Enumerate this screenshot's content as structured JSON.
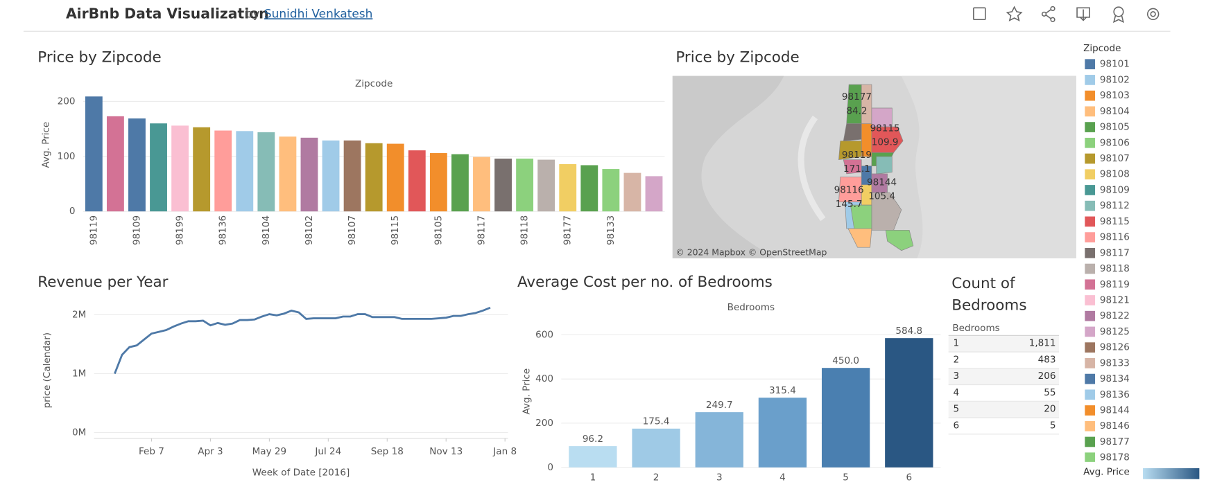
{
  "header": {
    "title": "AirBnb Data Visualization",
    "by": "by",
    "author": "Sunidhi Venkatesh"
  },
  "chart_data": [
    {
      "type": "bar",
      "title": "Price by Zipcode",
      "x_title": "Zipcode",
      "y_label": "Avg. Price",
      "categories": [
        "98119",
        null,
        "98109",
        null,
        "98199",
        null,
        "98136",
        null,
        "98104",
        null,
        "98102",
        null,
        "98107",
        null,
        "98115",
        null,
        "98105",
        null,
        "98117",
        null,
        "98118",
        null,
        "98177",
        null,
        "98133",
        null,
        null
      ],
      "values": [
        209,
        173,
        169,
        160,
        156,
        153,
        147,
        146,
        144,
        136,
        134,
        129,
        129,
        124,
        123,
        111,
        106,
        104,
        99,
        96,
        96,
        94,
        86,
        84,
        77,
        70,
        64
      ],
      "colors": [
        "#4e79a7",
        "#d37295",
        "#4e79a7",
        "#499894",
        "#fabfd2",
        "#b6992d",
        "#ff9d9a",
        "#a0cbe8",
        "#86bcb6",
        "#ffbe7d",
        "#b07aa1",
        "#a0cbe8",
        "#9d7660",
        "#b6992d",
        "#f28e2b",
        "#e15759",
        "#f28e2b",
        "#59a14f",
        "#ffbe7d",
        "#79706e",
        "#8cd17d",
        "#bab0ac",
        "#f1ce63",
        "#59a14f",
        "#8cd17d",
        "#d7b5a6",
        "#d4a6c8"
      ],
      "ylim": [
        0,
        215
      ],
      "yticks": [
        0,
        100,
        200
      ],
      "grid": true
    },
    {
      "type": "map",
      "title": "Price by Zipcode",
      "attribution": "© 2024 Mapbox © OpenStreetMap",
      "labels": [
        {
          "zipcode": "98177",
          "value": 84.2
        },
        {
          "zipcode": "98115",
          "value": 109.9
        },
        {
          "zipcode": "98119",
          "value": 171.1
        },
        {
          "zipcode": "98116",
          "value": 145.7
        },
        {
          "zipcode": "98144",
          "value": 105.4
        }
      ],
      "legend_title": "Zipcode",
      "legend": [
        {
          "name": "98101",
          "color": "#4e79a7"
        },
        {
          "name": "98102",
          "color": "#a0cbe8"
        },
        {
          "name": "98103",
          "color": "#f28e2b"
        },
        {
          "name": "98104",
          "color": "#ffbe7d"
        },
        {
          "name": "98105",
          "color": "#59a14f"
        },
        {
          "name": "98106",
          "color": "#8cd17d"
        },
        {
          "name": "98107",
          "color": "#b6992d"
        },
        {
          "name": "98108",
          "color": "#f1ce63"
        },
        {
          "name": "98109",
          "color": "#499894"
        },
        {
          "name": "98112",
          "color": "#86bcb6"
        },
        {
          "name": "98115",
          "color": "#e15759"
        },
        {
          "name": "98116",
          "color": "#ff9d9a"
        },
        {
          "name": "98117",
          "color": "#79706e"
        },
        {
          "name": "98118",
          "color": "#bab0ac"
        },
        {
          "name": "98119",
          "color": "#d37295"
        },
        {
          "name": "98121",
          "color": "#fabfd2"
        },
        {
          "name": "98122",
          "color": "#b07aa1"
        },
        {
          "name": "98125",
          "color": "#d4a6c8"
        },
        {
          "name": "98126",
          "color": "#9d7660"
        },
        {
          "name": "98133",
          "color": "#d7b5a6"
        },
        {
          "name": "98134",
          "color": "#4e79a7"
        },
        {
          "name": "98136",
          "color": "#a0cbe8"
        },
        {
          "name": "98144",
          "color": "#f28e2b"
        },
        {
          "name": "98146",
          "color": "#ffbe7d"
        },
        {
          "name": "98177",
          "color": "#59a14f"
        },
        {
          "name": "98178",
          "color": "#8cd17d"
        }
      ],
      "color_legend_title": "Avg. Price"
    },
    {
      "type": "line",
      "title": "Revenue per Year",
      "x_title": "Week of Date [2016]",
      "y_label": "price (Calendar)",
      "color": "#4e79a7",
      "x": [
        0,
        1,
        2,
        3,
        4,
        5,
        6,
        7,
        8,
        9,
        10,
        11,
        12,
        13,
        14,
        15,
        16,
        17,
        18,
        19,
        20,
        21,
        22,
        23,
        24,
        25,
        26,
        27,
        28,
        29,
        30,
        31,
        32,
        33,
        34,
        35,
        36,
        37,
        38,
        39,
        40,
        41,
        42,
        43,
        44,
        45,
        46,
        47,
        48,
        49,
        50,
        51
      ],
      "values": [
        1000000,
        1320000,
        1450000,
        1480000,
        1580000,
        1680000,
        1710000,
        1740000,
        1800000,
        1850000,
        1890000,
        1890000,
        1900000,
        1820000,
        1860000,
        1830000,
        1850000,
        1910000,
        1910000,
        1920000,
        1970000,
        2010000,
        1990000,
        2020000,
        2070000,
        2040000,
        1930000,
        1940000,
        1940000,
        1940000,
        1940000,
        1970000,
        1970000,
        2010000,
        2010000,
        1960000,
        1960000,
        1960000,
        1960000,
        1930000,
        1930000,
        1930000,
        1930000,
        1930000,
        1940000,
        1950000,
        1980000,
        1980000,
        2010000,
        2030000,
        2070000,
        2120000
      ],
      "xlim": [
        -2.8,
        53.4
      ],
      "xticks": [
        {
          "value": 5,
          "label": "Feb 7"
        },
        {
          "value": 13,
          "label": "Apr 3"
        },
        {
          "value": 21,
          "label": "May 29"
        },
        {
          "value": 29,
          "label": "Jul 24"
        },
        {
          "value": 37,
          "label": "Sep 18"
        },
        {
          "value": 45,
          "label": "Nov 13"
        },
        {
          "value": 53,
          "label": "Jan 8"
        }
      ],
      "ylim": [
        -100000,
        2160000
      ],
      "yticks": [
        {
          "value": 0,
          "label": "0M"
        },
        {
          "value": 1000000,
          "label": "1M"
        },
        {
          "value": 2000000,
          "label": "2M"
        }
      ],
      "grid": true
    },
    {
      "type": "bar",
      "title": "Average Cost per no. of Bedrooms",
      "x_title": "Bedrooms",
      "y_label": "Avg. Price",
      "categories": [
        "1",
        "2",
        "3",
        "4",
        "5",
        "6"
      ],
      "values": [
        96.2,
        175.4,
        249.7,
        315.4,
        450.0,
        584.8
      ],
      "value_labels": [
        "96.2",
        "175.4",
        "249.7",
        "315.4",
        "450.0",
        "584.8"
      ],
      "colors": [
        "#b9ddf1",
        "#9fcae6",
        "#85b5d9",
        "#6a9fcb",
        "#4a7fb0",
        "#2a5783"
      ],
      "ylim": [
        0,
        680
      ],
      "yticks": [
        0,
        200,
        400,
        600
      ],
      "grid": true
    }
  ],
  "table": {
    "title": "Count of Bedrooms",
    "header": "Bedrooms",
    "rows": [
      [
        1,
        "1,811"
      ],
      [
        2,
        483
      ],
      [
        3,
        206
      ],
      [
        4,
        55
      ],
      [
        5,
        20
      ],
      [
        6,
        5
      ]
    ]
  }
}
